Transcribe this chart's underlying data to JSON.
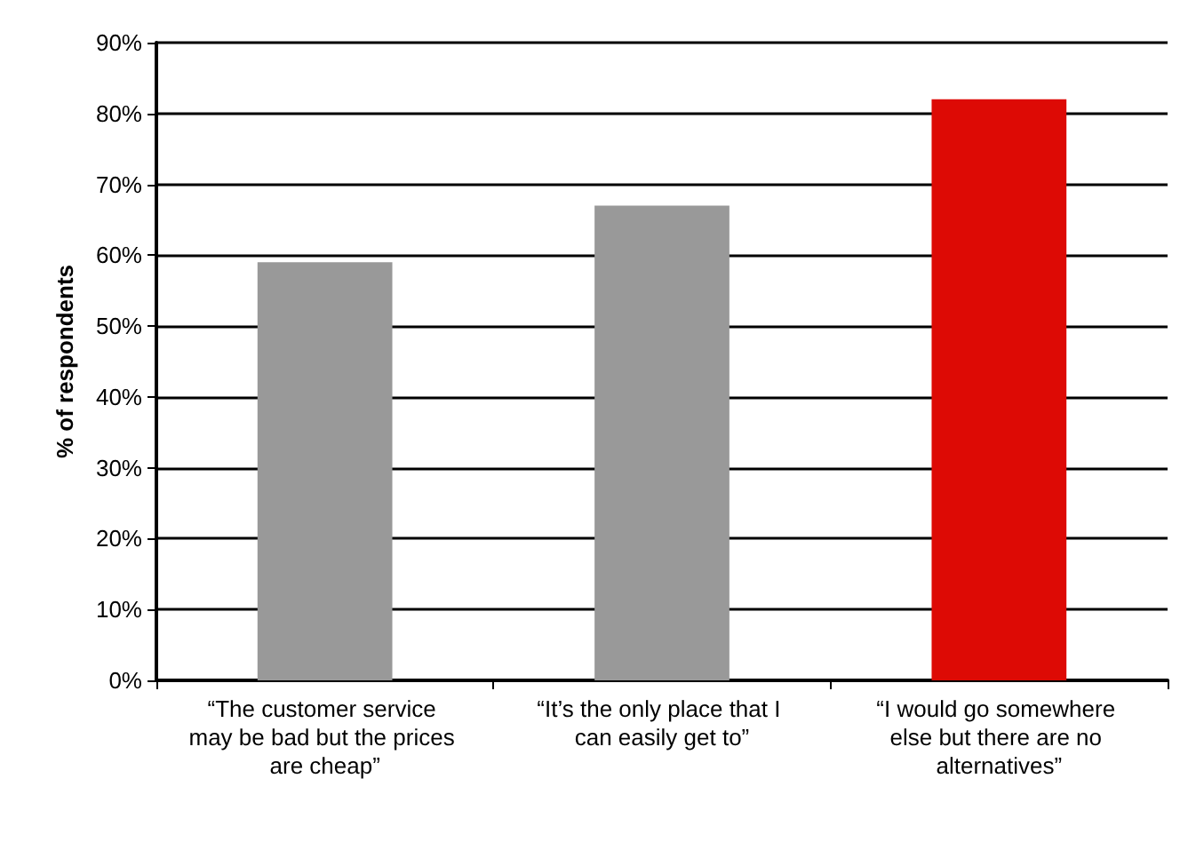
{
  "chart_data": {
    "type": "bar",
    "ylabel": "% of respondents",
    "categories": [
      "“The customer service may be bad but the prices are cheap”",
      "“It’s the only place that I can easily get to”",
      "“I would go somewhere else but there are no alternatives”"
    ],
    "values": [
      59,
      67,
      82
    ],
    "colors": [
      "#999999",
      "#999999",
      "#dd0a05"
    ],
    "ylim": [
      0,
      90
    ],
    "yticks": [
      {
        "value": 0,
        "label": "0%"
      },
      {
        "value": 10,
        "label": "10%"
      },
      {
        "value": 20,
        "label": "20%"
      },
      {
        "value": 30,
        "label": "30%"
      },
      {
        "value": 40,
        "label": "40%"
      },
      {
        "value": 50,
        "label": "50%"
      },
      {
        "value": 60,
        "label": "60%"
      },
      {
        "value": 70,
        "label": "70%"
      },
      {
        "value": 80,
        "label": "80%"
      },
      {
        "value": 90,
        "label": "90%"
      }
    ],
    "grid": "y"
  }
}
